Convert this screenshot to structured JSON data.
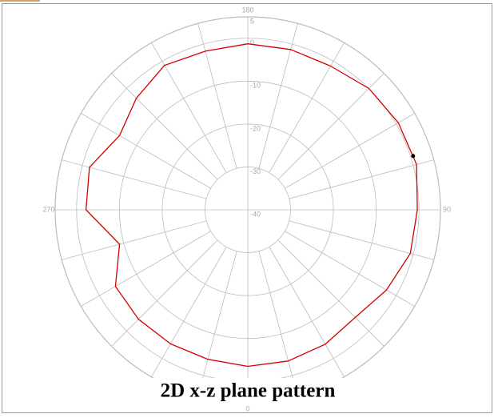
{
  "chart_data": {
    "type": "polar",
    "title": "2D x-z plane pattern",
    "rlim": [
      -40,
      5
    ],
    "rticks": [
      5,
      0,
      -10,
      -20,
      -30,
      -40
    ],
    "thetaticks": [
      0,
      90,
      180,
      270
    ],
    "thetagrid": [
      0,
      15,
      30,
      45,
      60,
      75,
      90,
      105,
      120,
      135,
      150,
      165,
      180,
      195,
      210,
      225,
      240,
      255,
      270,
      285,
      300,
      315,
      330,
      345
    ],
    "theta": [
      0,
      15,
      30,
      45,
      60,
      75,
      90,
      105,
      120,
      135,
      150,
      165,
      180,
      195,
      210,
      225,
      240,
      255,
      270,
      285,
      300,
      315,
      330,
      345
    ],
    "values": [
      -3.5,
      -3.5,
      -3.8,
      -4.5,
      -2.6,
      -0.7,
      -0.4,
      0.8,
      0.6,
      0,
      -1.3,
      -1.3,
      -1.3,
      -1.7,
      -1.1,
      -3.2,
      -5.4,
      -1.7,
      -2.2,
      -9,
      -4.3,
      -3.9,
      -3.9,
      -3.9
    ],
    "color": "#d40000",
    "marker": {
      "theta": 108,
      "value": 0.6,
      "color": "#000000"
    }
  }
}
